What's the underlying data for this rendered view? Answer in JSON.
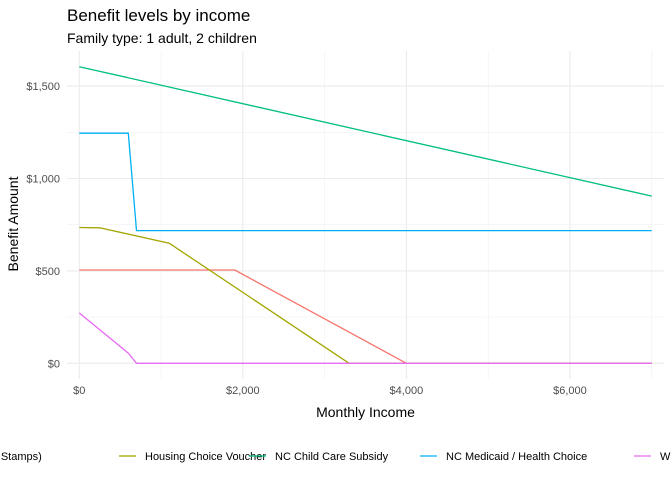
{
  "chart_data": {
    "type": "line",
    "title": "Benefit levels by income",
    "subtitle": "Family type: 1 adult, 2 children",
    "xlabel": "Monthly Income",
    "ylabel": "Benefit Amount",
    "xlim": [
      -150,
      7150
    ],
    "ylim": [
      -85,
      1690
    ],
    "x_ticks": [
      0,
      2000,
      4000,
      6000
    ],
    "x_tick_labels": [
      "$0",
      "$2,000",
      "$4,000",
      "$6,000"
    ],
    "y_ticks": [
      0,
      500,
      1000,
      1500
    ],
    "y_tick_labels": [
      "$0",
      "$500",
      "$1,000",
      "$1,500"
    ],
    "grid": true,
    "legend_position": "bottom",
    "series": [
      {
        "name": "FNS (Food Stamps)",
        "color": "#F8766D",
        "x": [
          0,
          1900,
          4000,
          7000
        ],
        "y": [
          505,
          505,
          0,
          0
        ]
      },
      {
        "name": "Housing Choice Voucher",
        "color": "#A3A500",
        "x": [
          0,
          250,
          1100,
          3300,
          7000
        ],
        "y": [
          735,
          733,
          650,
          0,
          0
        ]
      },
      {
        "name": "NC Child Care Subsidy",
        "color": "#00BF7D",
        "x": [
          0,
          7000
        ],
        "y": [
          1605,
          905
        ]
      },
      {
        "name": "NC Medicaid / Health Choice",
        "color": "#00B0F6",
        "x": [
          0,
          600,
          700,
          7000
        ],
        "y": [
          1245,
          1245,
          718,
          718
        ]
      },
      {
        "name": "W",
        "color": "#E76BF3",
        "x": [
          0,
          600,
          700,
          7000
        ],
        "y": [
          272,
          55,
          0,
          0
        ]
      }
    ]
  }
}
